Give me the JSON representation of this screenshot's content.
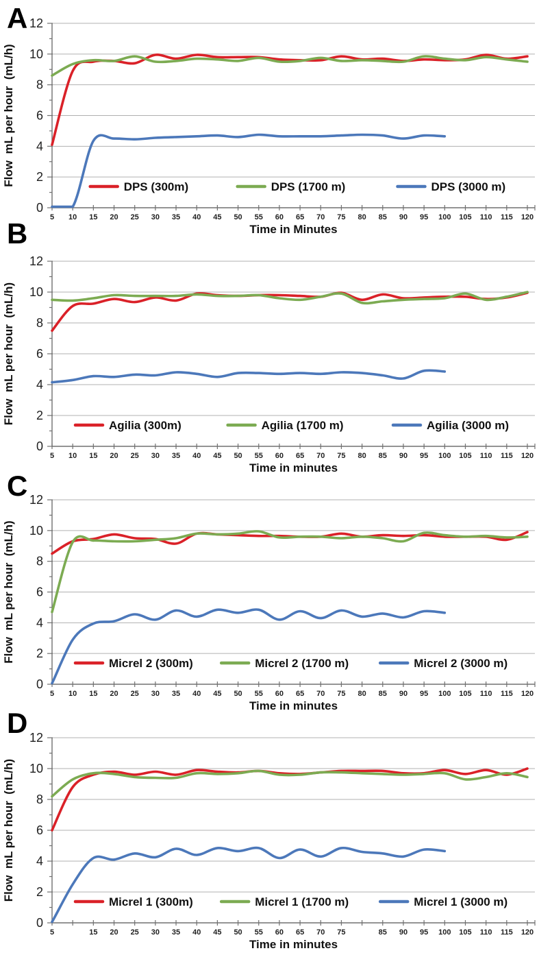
{
  "x_axes": {
    "full": [
      5,
      10,
      15,
      20,
      25,
      30,
      35,
      40,
      45,
      50,
      55,
      60,
      65,
      70,
      75,
      80,
      85,
      90,
      95,
      100,
      105,
      110,
      115,
      120
    ],
    "short": [
      5,
      10,
      15,
      20,
      25,
      30,
      35,
      40,
      45,
      50,
      55,
      60,
      65,
      70,
      75,
      80,
      85,
      90,
      95,
      100
    ]
  },
  "colors": {
    "series_300m": "#da2128",
    "series_1700m": "#7cab52",
    "series_3000m": "#4c78ba",
    "grid": "#b0b0b0",
    "axis": "#707070",
    "tick_text": "#1f1f1f",
    "title_text": "#111111",
    "background": "#ffffff"
  },
  "chart_data": [
    {
      "panel": "A",
      "type": "line",
      "xlabel": "Time in Minutes",
      "ylabel": "Flow  mL per hour  (mL/h)",
      "ylim": [
        0,
        12
      ],
      "yticks": [
        0,
        2,
        4,
        6,
        8,
        10,
        12
      ],
      "y_minor_step": 1,
      "xlim": [
        5,
        120
      ],
      "xticks_ref": "full",
      "xtick_labels": [
        "5",
        "10",
        "15",
        "20",
        "25",
        "30",
        "35",
        "40",
        "45",
        "50",
        "55",
        "60",
        "65",
        "70",
        "75",
        "80",
        "85",
        "90",
        "95",
        "100",
        "105",
        "110",
        "115",
        "120"
      ],
      "grid": "horizontal",
      "legend_position": "inside-bottom",
      "series": [
        {
          "name": "DPS (300m)",
          "color": "#da2128",
          "x_ref": "full",
          "values": [
            4.1,
            8.9,
            9.5,
            9.55,
            9.4,
            9.95,
            9.7,
            9.95,
            9.8,
            9.8,
            9.8,
            9.65,
            9.6,
            9.6,
            9.85,
            9.65,
            9.7,
            9.55,
            9.65,
            9.6,
            9.65,
            9.95,
            9.7,
            9.85
          ]
        },
        {
          "name": "DPS (1700 m)",
          "color": "#7cab52",
          "x_ref": "full",
          "values": [
            8.6,
            9.35,
            9.6,
            9.55,
            9.85,
            9.5,
            9.55,
            9.7,
            9.65,
            9.55,
            9.75,
            9.5,
            9.55,
            9.75,
            9.55,
            9.6,
            9.55,
            9.5,
            9.85,
            9.7,
            9.6,
            9.8,
            9.65,
            9.5
          ]
        },
        {
          "name": "DPS (3000 m)",
          "color": "#4c78ba",
          "x_ref": "short",
          "values": [
            0,
            0.05,
            4.35,
            4.5,
            4.45,
            4.55,
            4.6,
            4.65,
            4.7,
            4.6,
            4.75,
            4.65,
            4.65,
            4.65,
            4.7,
            4.75,
            4.7,
            4.5,
            4.7,
            4.65
          ]
        }
      ]
    },
    {
      "panel": "B",
      "type": "line",
      "xlabel": "Time in minutes",
      "ylabel": "Flow  mL per hour  (mL/h)",
      "ylim": [
        0,
        12
      ],
      "yticks": [
        0,
        2,
        4,
        6,
        8,
        10,
        12
      ],
      "y_minor_step": 1,
      "xlim": [
        5,
        120
      ],
      "xticks_ref": "full",
      "xtick_labels": [
        "5",
        "10",
        "15",
        "20",
        "25",
        "30",
        "35",
        "40",
        "45",
        "50",
        "55",
        "60",
        "65",
        "70",
        "75",
        "80",
        "85",
        "90",
        "95",
        "100",
        "105",
        "110",
        "115",
        "120"
      ],
      "grid": "horizontal",
      "legend_position": "inside-bottom",
      "series": [
        {
          "name": "Agilia (300m)",
          "color": "#da2128",
          "x_ref": "full",
          "values": [
            7.5,
            9.1,
            9.25,
            9.55,
            9.35,
            9.65,
            9.45,
            9.9,
            9.8,
            9.75,
            9.8,
            9.8,
            9.75,
            9.7,
            9.95,
            9.5,
            9.85,
            9.6,
            9.65,
            9.7,
            9.7,
            9.55,
            9.65,
            9.95
          ]
        },
        {
          "name": "Agilia (1700 m)",
          "color": "#7cab52",
          "x_ref": "full",
          "values": [
            9.5,
            9.45,
            9.6,
            9.8,
            9.75,
            9.75,
            9.75,
            9.85,
            9.75,
            9.75,
            9.8,
            9.6,
            9.5,
            9.7,
            9.9,
            9.3,
            9.4,
            9.5,
            9.55,
            9.6,
            9.9,
            9.5,
            9.7,
            10.0
          ]
        },
        {
          "name": "Agilia (3000 m)",
          "color": "#4c78ba",
          "x_ref": "short",
          "values": [
            4.15,
            4.3,
            4.55,
            4.5,
            4.65,
            4.6,
            4.8,
            4.7,
            4.5,
            4.75,
            4.75,
            4.7,
            4.75,
            4.7,
            4.8,
            4.75,
            4.6,
            4.4,
            4.9,
            4.85
          ]
        }
      ]
    },
    {
      "panel": "C",
      "type": "line",
      "xlabel": "Time in minutes",
      "ylabel": "Flow  mL per hour  (mL/h)",
      "ylim": [
        0,
        12
      ],
      "yticks": [
        0,
        2,
        4,
        6,
        8,
        10,
        12
      ],
      "y_minor_step": 1,
      "xlim": [
        5,
        120
      ],
      "xticks_ref": "full",
      "xtick_labels": [
        "5",
        "10",
        "15",
        "20",
        "25",
        "30",
        "35",
        "40",
        "45",
        "50",
        "55",
        "60",
        "65",
        "70",
        "75",
        "80",
        "85",
        "90",
        "95",
        "100",
        "105",
        "110",
        "115",
        "120"
      ],
      "grid": "horizontal",
      "legend_position": "inside-bottom",
      "series": [
        {
          "name": "Micrel 2 (300m)",
          "color": "#da2128",
          "x_ref": "full",
          "values": [
            8.5,
            9.3,
            9.45,
            9.75,
            9.5,
            9.45,
            9.15,
            9.8,
            9.75,
            9.7,
            9.65,
            9.65,
            9.6,
            9.6,
            9.8,
            9.6,
            9.7,
            9.65,
            9.7,
            9.6,
            9.6,
            9.6,
            9.4,
            9.9
          ]
        },
        {
          "name": "Micrel 2 (1700 m)",
          "color": "#7cab52",
          "x_ref": "full",
          "values": [
            4.7,
            9.25,
            9.35,
            9.3,
            9.3,
            9.4,
            9.5,
            9.8,
            9.75,
            9.8,
            9.95,
            9.55,
            9.6,
            9.6,
            9.5,
            9.6,
            9.5,
            9.3,
            9.85,
            9.7,
            9.6,
            9.65,
            9.55,
            9.6
          ]
        },
        {
          "name": "Micrel 2 (3000 m)",
          "color": "#4c78ba",
          "x_ref": "short",
          "values": [
            0,
            2.9,
            3.95,
            4.1,
            4.55,
            4.2,
            4.8,
            4.4,
            4.85,
            4.65,
            4.85,
            4.2,
            4.75,
            4.3,
            4.8,
            4.4,
            4.6,
            4.35,
            4.75,
            4.65
          ]
        }
      ]
    },
    {
      "panel": "D",
      "type": "line",
      "xlabel": "Time in minutes",
      "ylabel": "Flow  mL per hour  (mL/h)",
      "ylim": [
        0,
        12
      ],
      "yticks": [
        0,
        2,
        4,
        6,
        8,
        10,
        12
      ],
      "y_minor_step": 1,
      "xlim": [
        5,
        120
      ],
      "xticks_ref": "full",
      "xtick_labels": [
        "5",
        "",
        "15",
        "20",
        "25",
        "30",
        "35",
        "40",
        "45",
        "50",
        "55",
        "60",
        "65",
        "70",
        "75",
        "",
        "85",
        "90",
        "95",
        "100",
        "105",
        "110",
        "115",
        "120"
      ],
      "grid": "horizontal",
      "legend_position": "inside-bottom",
      "series": [
        {
          "name": "Micrel 1 (300m)",
          "color": "#da2128",
          "x_ref": "full",
          "values": [
            6.0,
            8.8,
            9.6,
            9.8,
            9.6,
            9.8,
            9.6,
            9.9,
            9.8,
            9.75,
            9.85,
            9.7,
            9.65,
            9.75,
            9.85,
            9.85,
            9.85,
            9.7,
            9.7,
            9.9,
            9.65,
            9.9,
            9.6,
            10.0
          ]
        },
        {
          "name": "Micrel 1 (1700 m)",
          "color": "#7cab52",
          "x_ref": "full",
          "values": [
            8.2,
            9.3,
            9.7,
            9.65,
            9.45,
            9.4,
            9.4,
            9.7,
            9.65,
            9.7,
            9.85,
            9.6,
            9.6,
            9.75,
            9.75,
            9.7,
            9.65,
            9.6,
            9.65,
            9.7,
            9.3,
            9.45,
            9.7,
            9.45
          ]
        },
        {
          "name": "Micrel 1 (3000 m)",
          "color": "#4c78ba",
          "x_ref": "short",
          "values": [
            0,
            2.5,
            4.2,
            4.1,
            4.5,
            4.25,
            4.8,
            4.4,
            4.85,
            4.65,
            4.85,
            4.2,
            4.75,
            4.3,
            4.85,
            4.6,
            4.5,
            4.3,
            4.75,
            4.65
          ]
        }
      ]
    }
  ]
}
